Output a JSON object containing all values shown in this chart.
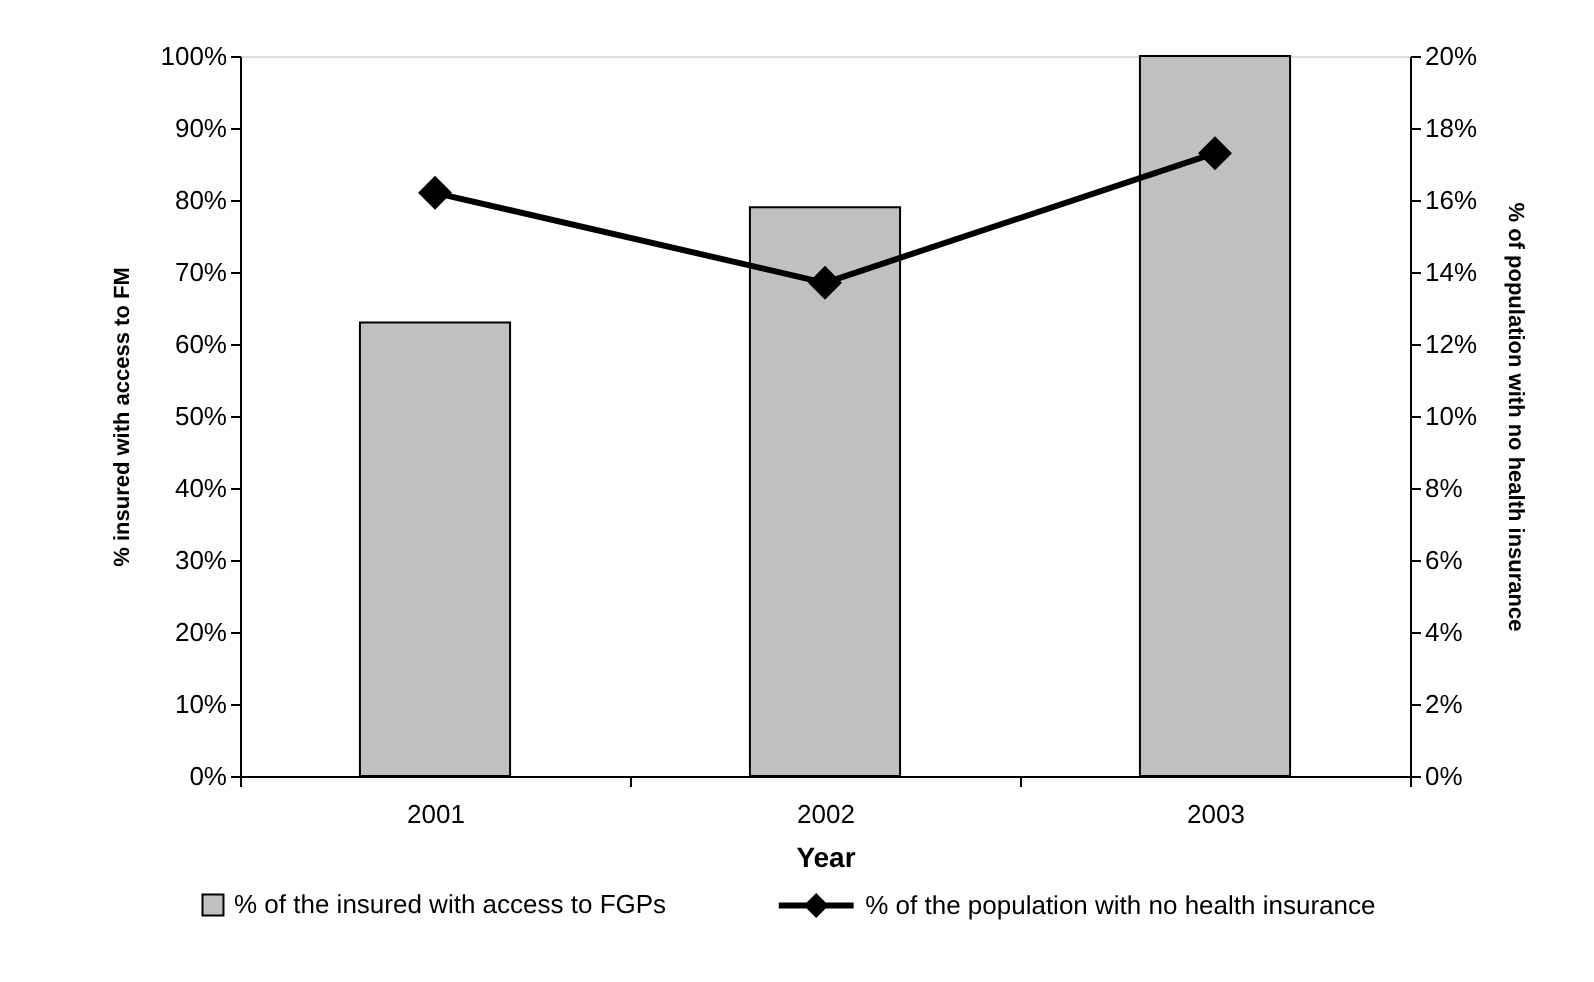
{
  "chart_data": {
    "type": "bar",
    "xlabel": "Year",
    "ylabel": "% insured with access to FM",
    "y2label": "% of population with no health insurance",
    "categories": [
      "2001",
      "2002",
      "2003"
    ],
    "series": [
      {
        "name": "% of the insured with access to FGPs",
        "color": "#c0c0c0",
        "values": [
          63,
          79,
          100
        ]
      },
      {
        "name": "% of the population with no health insurance",
        "type": "line",
        "axis": "y2",
        "color": "#000000",
        "values": [
          16.2,
          13.7,
          17.3
        ]
      }
    ],
    "ylim": [
      0,
      100
    ],
    "yticks": [
      {
        "value": 0,
        "label": "0%"
      },
      {
        "value": 10,
        "label": "10%"
      },
      {
        "value": 20,
        "label": "20%"
      },
      {
        "value": 30,
        "label": "30%"
      },
      {
        "value": 40,
        "label": "40%"
      },
      {
        "value": 50,
        "label": "50%"
      },
      {
        "value": 60,
        "label": "60%"
      },
      {
        "value": 70,
        "label": "70%"
      },
      {
        "value": 80,
        "label": "80%"
      },
      {
        "value": 90,
        "label": "90%"
      },
      {
        "value": 100,
        "label": "100%"
      }
    ],
    "y2lim": [
      0,
      20
    ],
    "y2ticks": [
      {
        "value": 0,
        "label": "0%"
      },
      {
        "value": 2,
        "label": "2%"
      },
      {
        "value": 4,
        "label": "4%"
      },
      {
        "value": 6,
        "label": "6%"
      },
      {
        "value": 8,
        "label": "8%"
      },
      {
        "value": 10,
        "label": "10%"
      },
      {
        "value": 12,
        "label": "12%"
      },
      {
        "value": 14,
        "label": "14%"
      },
      {
        "value": 16,
        "label": "16%"
      },
      {
        "value": 18,
        "label": "18%"
      },
      {
        "value": 20,
        "label": "20%"
      }
    ],
    "marker": "diamond",
    "line_style": "solid",
    "legend": "bottom"
  }
}
